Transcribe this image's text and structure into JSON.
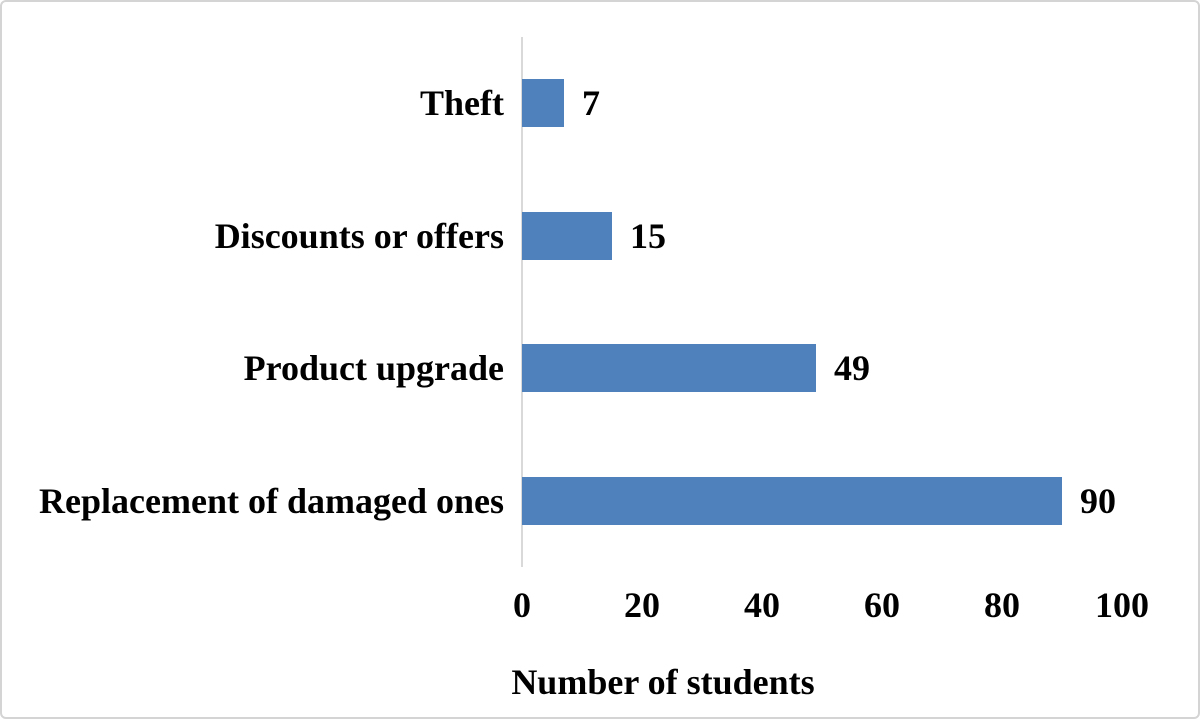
{
  "chart_data": {
    "type": "bar",
    "orientation": "horizontal",
    "title": "",
    "xlabel": "Number of students",
    "ylabel": "",
    "categories": [
      "Theft",
      "Discounts or offers",
      "Product upgrade",
      "Replacement of damaged ones"
    ],
    "values": [
      7,
      15,
      49,
      90
    ],
    "data_labels": [
      "7",
      "15",
      "49",
      "90"
    ],
    "xticks": [
      "0",
      "20",
      "40",
      "60",
      "80",
      "100"
    ],
    "xlim": [
      0,
      100
    ],
    "grid": false,
    "legend": "none",
    "colors": {
      "bar": "#4F81BD",
      "axis_line": "#D9D9D9",
      "text": "#000000",
      "border": "#D4D4D4",
      "background": "#FFFFFF"
    }
  }
}
